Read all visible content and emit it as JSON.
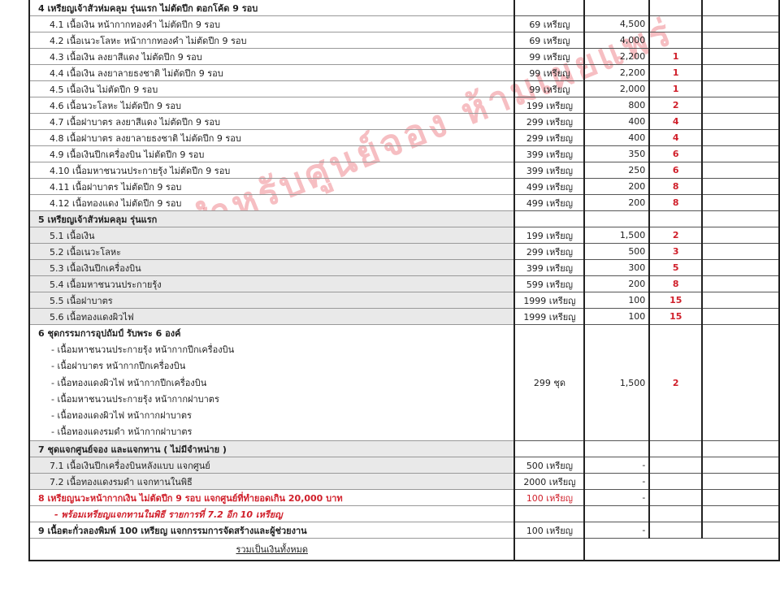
{
  "watermark": "สำหรับศูนย์จอง ห้ามเผยแพร่",
  "colors": {
    "accent_red": "#d01f2a",
    "gray_row": "#e9e9e9"
  },
  "rows": [
    {
      "type": "head",
      "desc": "4 เหรียญเจ้าสัวห่มคลุม รุ่นแรก ไม่ตัดปีก ตอกโค้ด 9 รอบ",
      "price": "",
      "qty": "",
      "red": ""
    },
    {
      "type": "sub",
      "desc": "4.1 เนื้อเงิน หน้ากากทองคำ ไม่ตัดปีก 9 รอบ",
      "price": "69 เหรียญ",
      "qty": "4,500",
      "red": ""
    },
    {
      "type": "sub",
      "desc": "4.2 เนื้อเนวะโลหะ หน้ากากทองคำ ไม่ตัดปีก 9 รอบ",
      "price": "69 เหรียญ",
      "qty": "4,000",
      "red": ""
    },
    {
      "type": "sub",
      "desc": "4.3 เนื้อเงิน ลงยาสีแดง ไม่ตัดปีก 9 รอบ",
      "price": "99 เหรียญ",
      "qty": "2,200",
      "red": "1"
    },
    {
      "type": "sub",
      "desc": "4.4 เนื้อเงิน ลงยาลายธงชาติ ไม่ตัดปีก 9 รอบ",
      "price": "99 เหรียญ",
      "qty": "2,200",
      "red": "1"
    },
    {
      "type": "sub",
      "desc": "4.5 เนื้อเงิน ไม่ตัดปีก 9 รอบ",
      "price": "99 เหรียญ",
      "qty": "2,000",
      "red": "1"
    },
    {
      "type": "sub",
      "desc": "4.6 เนื้อนวะโลหะ  ไม่ตัดปีก 9 รอบ",
      "price": "199 เหรียญ",
      "qty": "800",
      "red": "2"
    },
    {
      "type": "sub",
      "desc": "4.7 เนื้อฝาบาตร ลงยาสีแดง ไม่ตัดปีก 9 รอบ",
      "price": "299 เหรียญ",
      "qty": "400",
      "red": "4"
    },
    {
      "type": "sub",
      "desc": "4.8 เนื้อฝาบาตร ลงยาลายธงชาติ ไม่ตัดปีก 9 รอบ",
      "price": "299 เหรียญ",
      "qty": "400",
      "red": "4"
    },
    {
      "type": "sub",
      "desc": "4.9 เนื้อเงินปีกเครื่องบิน ไม่ตัดปีก 9 รอบ",
      "price": "399 เหรียญ",
      "qty": "350",
      "red": "6"
    },
    {
      "type": "sub",
      "desc": "4.10 เนื้อมหาชนวนประกายรุ้ง ไม่ตัดปีก 9 รอบ",
      "price": "399 เหรียญ",
      "qty": "250",
      "red": "6"
    },
    {
      "type": "sub",
      "desc": "4.11 เนื้อฝาบาตร  ไม่ตัดปีก 9 รอบ",
      "price": "499 เหรียญ",
      "qty": "200",
      "red": "8"
    },
    {
      "type": "sub",
      "desc": "4.12 เนื้อทองแดง  ไม่ตัดปีก 9 รอบ",
      "price": "499 เหรียญ",
      "qty": "200",
      "red": "8"
    },
    {
      "type": "head gray",
      "desc": "5 เหรียญเจ้าสัวห่มคลุม รุ่นแรก",
      "price": "",
      "qty": "",
      "red": ""
    },
    {
      "type": "sub gray",
      "desc": "5.1 เนื้อเงิน",
      "price": "199 เหรียญ",
      "qty": "1,500",
      "red": "2"
    },
    {
      "type": "sub gray",
      "desc": "5.2 เนื้อเนวะโลหะ",
      "price": "299 เหรียญ",
      "qty": "500",
      "red": "3"
    },
    {
      "type": "sub gray",
      "desc": "5.3 เนื้อเงินปีกเครื่องบิน",
      "price": "399 เหรียญ",
      "qty": "300",
      "red": "5"
    },
    {
      "type": "sub gray",
      "desc": "5.4  เนื้อมหาชนวนประกายรุ้ง",
      "price": "599 เหรียญ",
      "qty": "200",
      "red": "8"
    },
    {
      "type": "sub gray",
      "desc": "5.5 เนื้อฝาบาตร",
      "price": "1999 เหรียญ",
      "qty": "100",
      "red": "15"
    },
    {
      "type": "sub gray",
      "desc": "5.6 เนื้อทองแดงผิวไฟ",
      "price": "1999 เหรียญ",
      "qty": "100",
      "red": "15"
    }
  ],
  "set6": {
    "title": "6 ชุดกรรมการอุปถัมป์ รับพระ 6 องค์",
    "lines": [
      "- เนื้อมหาชนวนประกายรุ้ง หน้ากากปีกเครื่องบิน",
      "- เนื้อฝาบาตร หน้ากากปีกเครื่องบิน",
      "- เนื้อทองแดงผิวไฟ หน้ากากปีกเครื่องบิน",
      "- เนื้อมหาชนวนประกายรุ้ง หน้ากากฝาบาตร",
      "- เนื้อทองแดงผิวไฟ หน้ากากฝาบาตร",
      "- เนื้อทองแดงรมดำ หน้ากากฝาบาตร"
    ],
    "price": "299 ชุด",
    "qty": "1,500",
    "red": "2"
  },
  "rows2": [
    {
      "type": "head gray",
      "desc": "7 ชุดแจกศูนย์จอง และแจกทาน ( ไม่มีจำหน่าย )",
      "price": "",
      "qty": "",
      "red": ""
    },
    {
      "type": "sub gray",
      "desc": "7.1 เนื้อเงินปีกเครื่องบินหลังแบบ แจกศูนย์",
      "price": "500 เหรียญ",
      "qty": "-",
      "red": ""
    },
    {
      "type": "sub gray",
      "desc": "7.2 เนื้อทองแดงรมดำ แจกทานในพิธี",
      "price": "2000 เหรียญ",
      "qty": "-",
      "red": ""
    },
    {
      "type": "head redtxt",
      "desc": "8 เหรียญนวะหน้ากากเงิน ไม่ตัดปีก 9 รอบ แจกศูนย์ที่ทำยอดเกิน 20,000 บาท",
      "price": "100 เหรียญ",
      "qty": "-",
      "red": ""
    },
    {
      "type": "redtxt italic",
      "desc": "- พร้อมเหรียญแจกทานในพิธี รายการที่ 7.2 อีก 10 เหรียญ",
      "price": "",
      "qty": "",
      "red": ""
    },
    {
      "type": "head",
      "desc": "9 เนื้อตะกั่วลองพิมพ์ 100 เหรียญ แจกกรรมการจัดสร้างและผู้ช่วยงาน",
      "price": "100 เหรียญ",
      "qty": "-",
      "red": ""
    }
  ],
  "total_label": "รวมเป็นเงินทั้งหมด"
}
